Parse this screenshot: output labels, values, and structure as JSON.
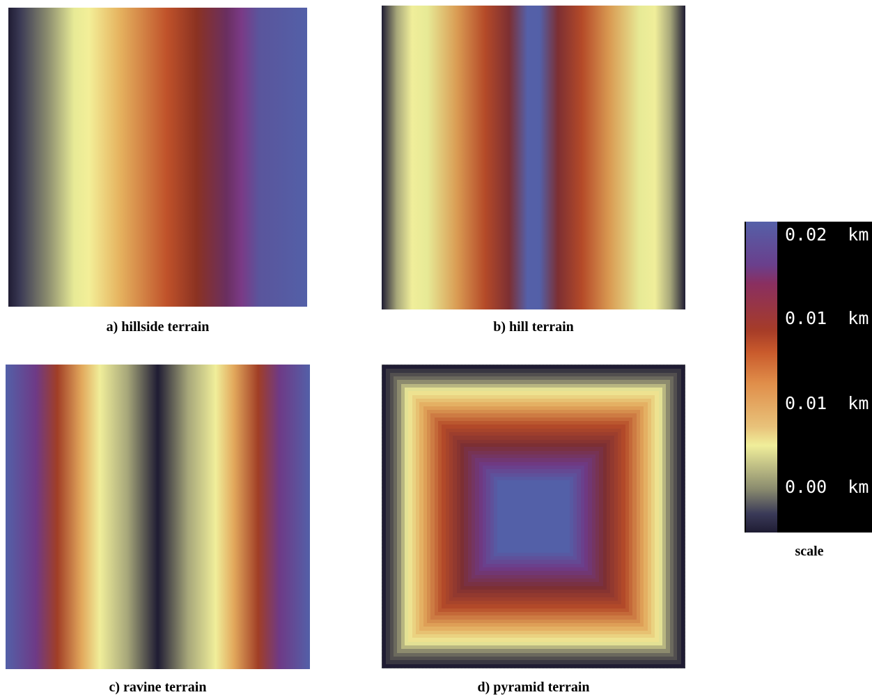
{
  "panels": [
    {
      "id": "a",
      "caption": "a) hillside terrain"
    },
    {
      "id": "b",
      "caption": "b) hill terrain"
    },
    {
      "id": "c",
      "caption": "c) ravine terrain"
    },
    {
      "id": "d",
      "caption": "d) pyramid terrain"
    }
  ],
  "scale": {
    "caption": "scale",
    "ticks": [
      "0.02  km",
      "0.01  km",
      "0.01  km",
      "0.00  km"
    ]
  },
  "colors": {
    "dark": "#1f1c33",
    "pale_yellow": "#f0ee9a",
    "orange": "#e2a85c",
    "rust": "#b54a28",
    "maroon": "#7c2f33",
    "purple": "#6e3a86",
    "blue": "#5360a8"
  }
}
